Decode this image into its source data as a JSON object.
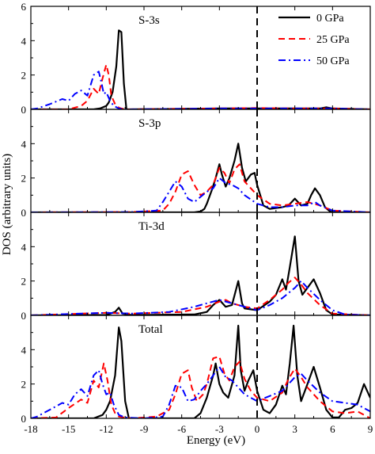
{
  "figure": {
    "ylabel": "DOS (arbitrary units)",
    "xlabel": "Energy (eV)",
    "xlim": [
      -18,
      9
    ],
    "x_ticks": [
      "-18",
      "-15",
      "-12",
      "-9",
      "-6",
      "-3",
      "0",
      "3",
      "6",
      "9"
    ],
    "fermi_line_at": 0,
    "legend": {
      "placement": "top-right of first panel",
      "entries": [
        {
          "name": "0 GPa",
          "color": "#000000",
          "style": "solid"
        },
        {
          "name": "25 GPa",
          "color": "#ff0000",
          "style": "dashed"
        },
        {
          "name": "50 GPa",
          "color": "#0000ff",
          "style": "dash-dot"
        }
      ]
    }
  },
  "chart_data": [
    {
      "type": "line",
      "panel_label": "S-3s",
      "ylim": [
        0,
        6
      ],
      "y_ticks": [
        "0",
        "2",
        "4",
        "6"
      ],
      "series": [
        {
          "name": "0 GPa",
          "x": [
            -18,
            -13,
            -12.5,
            -12,
            -11.8,
            -11.5,
            -11.2,
            -11.0,
            -10.8,
            -10.6,
            -10.4,
            -10,
            -3,
            0,
            3,
            5,
            5.5,
            6,
            9
          ],
          "y": [
            0,
            0,
            0.05,
            0.2,
            0.4,
            1.0,
            2.5,
            4.6,
            4.5,
            1.5,
            0,
            0,
            0.05,
            0.05,
            0.05,
            0.05,
            0.12,
            0.05,
            0
          ]
        },
        {
          "name": "25 GPa",
          "x": [
            -18,
            -15,
            -14,
            -13.5,
            -13,
            -12.6,
            -12.3,
            -12,
            -11.8,
            -11.6,
            -11.3,
            -11.0,
            -10.8,
            -10.5,
            -3,
            0,
            3,
            6,
            9
          ],
          "y": [
            0,
            0,
            0.2,
            0.5,
            1.2,
            0.9,
            1.8,
            2.6,
            2.0,
            0.8,
            0.3,
            0.1,
            0.05,
            0,
            0.05,
            0.08,
            0.05,
            0.05,
            0
          ]
        },
        {
          "name": "50 GPa",
          "x": [
            -18,
            -17.5,
            -16.5,
            -15.5,
            -15,
            -14.5,
            -14,
            -13.5,
            -13,
            -12.6,
            -12.4,
            -12.2,
            -12,
            -11.7,
            -11.4,
            -11.0,
            -10.5,
            -3,
            0,
            3,
            6,
            9
          ],
          "y": [
            0,
            0.05,
            0.3,
            0.6,
            0.5,
            0.9,
            1.1,
            0.8,
            2.0,
            2.2,
            1.6,
            0.9,
            1.0,
            0.5,
            0.2,
            0.05,
            0,
            0.05,
            0.05,
            0.05,
            0.05,
            0
          ]
        }
      ]
    },
    {
      "type": "line",
      "panel_label": "S-3p",
      "ylim": [
        0,
        6
      ],
      "y_ticks": [
        "0",
        "2",
        "4"
      ],
      "series": [
        {
          "name": "0 GPa",
          "x": [
            -18,
            -5,
            -4.5,
            -4.2,
            -4,
            -3.6,
            -3.3,
            -3,
            -2.8,
            -2.5,
            -2.2,
            -1.8,
            -1.5,
            -1.2,
            -0.9,
            -0.5,
            -0.2,
            0,
            0.5,
            1,
            2,
            2.5,
            3,
            3.5,
            4,
            4.3,
            4.6,
            5,
            5.4,
            5.8,
            6,
            9
          ],
          "y": [
            0,
            0,
            0.05,
            0.2,
            0.5,
            1.3,
            2.0,
            2.8,
            2.2,
            1.5,
            2.0,
            3.0,
            4.0,
            2.6,
            1.8,
            2.2,
            2.3,
            1.6,
            0.4,
            0.2,
            0.3,
            0.4,
            0.8,
            0.4,
            0.5,
            1.0,
            1.4,
            1.0,
            0.3,
            0.05,
            0,
            0
          ]
        },
        {
          "name": "25 GPa",
          "x": [
            -18,
            -10,
            -7.5,
            -7,
            -6.5,
            -6,
            -5.5,
            -5,
            -4.5,
            -4,
            -3.5,
            -3,
            -2.6,
            -2.2,
            -1.8,
            -1.4,
            -1,
            -0.5,
            0,
            1,
            2,
            3,
            4,
            5,
            6,
            9
          ],
          "y": [
            0,
            0.02,
            0.1,
            0.5,
            1.2,
            2.2,
            2.4,
            1.6,
            1.0,
            1.2,
            1.6,
            2.6,
            2.3,
            1.7,
            2.5,
            2.8,
            1.8,
            1.4,
            1.0,
            0.5,
            0.4,
            0.5,
            0.6,
            0.4,
            0.1,
            0
          ]
        },
        {
          "name": "50 GPa",
          "x": [
            -18,
            -10,
            -8,
            -7.5,
            -7,
            -6.5,
            -6,
            -5.5,
            -5,
            -4.5,
            -4,
            -3.5,
            -3,
            -2.5,
            -2,
            -1.5,
            -1,
            0,
            1,
            2,
            3,
            4,
            4.6,
            5,
            6,
            9
          ],
          "y": [
            0,
            0.02,
            0.1,
            0.6,
            1.2,
            1.8,
            1.5,
            0.8,
            0.6,
            0.9,
            1.2,
            1.4,
            2.0,
            1.7,
            1.6,
            1.4,
            1.0,
            0.5,
            0.3,
            0.3,
            0.4,
            0.4,
            0.6,
            0.4,
            0.1,
            0
          ]
        }
      ]
    },
    {
      "type": "line",
      "panel_label": "Ti-3d",
      "ylim": [
        0,
        6
      ],
      "y_ticks": [
        "0",
        "2",
        "4"
      ],
      "series": [
        {
          "name": "0 GPa",
          "x": [
            -18,
            -12,
            -11.3,
            -11,
            -10.7,
            -10,
            -5,
            -4,
            -3.5,
            -3,
            -2.5,
            -2,
            -1.5,
            -1.2,
            -1,
            0,
            1,
            1.5,
            2,
            2.3,
            2.6,
            3,
            3.3,
            3.6,
            4,
            4.5,
            5,
            5.5,
            6,
            9
          ],
          "y": [
            0,
            0.02,
            0.2,
            0.45,
            0.1,
            0.02,
            0.05,
            0.2,
            0.6,
            0.9,
            0.5,
            0.6,
            2.0,
            0.7,
            0.4,
            0.3,
            0.8,
            1.2,
            2.1,
            1.5,
            2.8,
            4.6,
            2.0,
            1.2,
            1.6,
            2.1,
            1.3,
            0.3,
            0.05,
            0
          ]
        },
        {
          "name": "25 GPa",
          "x": [
            -18,
            -14,
            -12,
            -10,
            -6,
            -4,
            -3,
            -2.5,
            -2,
            -1,
            0,
            1,
            2,
            2.5,
            3,
            3.5,
            4,
            5,
            6,
            9
          ],
          "y": [
            0,
            0.1,
            0.15,
            0.1,
            0.2,
            0.5,
            0.8,
            0.9,
            0.7,
            0.5,
            0.4,
            0.9,
            1.5,
            1.9,
            2.2,
            1.8,
            1.3,
            0.6,
            0.1,
            0
          ]
        },
        {
          "name": "50 GPa",
          "x": [
            -18,
            -14,
            -12,
            -10,
            -7,
            -5,
            -4,
            -3,
            -2,
            -1,
            0,
            1,
            2,
            3,
            3.5,
            4,
            5,
            6,
            7,
            9
          ],
          "y": [
            0,
            0.1,
            0.15,
            0.1,
            0.2,
            0.5,
            0.7,
            0.9,
            0.7,
            0.5,
            0.3,
            0.6,
            1.0,
            1.6,
            2.0,
            1.6,
            0.9,
            0.3,
            0.05,
            0
          ]
        }
      ]
    },
    {
      "type": "line",
      "panel_label": "Total",
      "ylim": [
        0,
        6
      ],
      "y_ticks": [
        "0",
        "2",
        "4"
      ],
      "series": [
        {
          "name": "0 GPa",
          "x": [
            -18,
            -13,
            -12.3,
            -12,
            -11.7,
            -11.3,
            -11.0,
            -10.8,
            -10.5,
            -10.2,
            -5,
            -4.5,
            -4,
            -3.5,
            -3.3,
            -3,
            -2.7,
            -2.3,
            -1.8,
            -1.5,
            -1.3,
            -1,
            -0.7,
            -0.3,
            0,
            0.5,
            1,
            1.5,
            2,
            2.3,
            2.6,
            2.9,
            3.2,
            3.5,
            4,
            4.5,
            5,
            5.5,
            6,
            6.5,
            7,
            7.5,
            8,
            8.5,
            9
          ],
          "y": [
            0,
            0,
            0.2,
            0.5,
            1.0,
            2.5,
            5.3,
            4.5,
            1.0,
            0,
            0,
            0.3,
            1.2,
            2.5,
            3.2,
            2.0,
            1.5,
            1.2,
            2.5,
            5.4,
            2.8,
            1.6,
            2.2,
            2.8,
            1.6,
            0.5,
            0.3,
            0.8,
            1.9,
            1.4,
            3.2,
            5.4,
            2.5,
            1.0,
            2.0,
            3.0,
            1.8,
            0.5,
            0.05,
            0.05,
            0.5,
            0.6,
            0.9,
            2.0,
            1.2
          ]
        },
        {
          "name": "25 GPa",
          "x": [
            -18,
            -16,
            -15,
            -14,
            -13.5,
            -13,
            -12.6,
            -12.2,
            -11.9,
            -11.6,
            -11.3,
            -11.0,
            -10.6,
            -10,
            -8,
            -7,
            -6.5,
            -6,
            -5.5,
            -5.2,
            -4.8,
            -4.3,
            -4,
            -3.5,
            -3,
            -2.6,
            -2.2,
            -1.8,
            -1.4,
            -1,
            -0.5,
            0,
            1,
            2,
            2.5,
            3,
            3.5,
            4,
            5,
            6,
            7,
            8,
            9
          ],
          "y": [
            0,
            0.05,
            0.6,
            1.1,
            0.9,
            2.2,
            1.8,
            3.2,
            2.2,
            0.8,
            0.3,
            0.1,
            0.05,
            0,
            0.1,
            0.5,
            1.4,
            2.6,
            2.8,
            1.8,
            1.0,
            1.4,
            2.0,
            3.5,
            3.6,
            2.6,
            2.2,
            3.0,
            3.3,
            2.3,
            1.6,
            1.2,
            1.0,
            1.5,
            2.3,
            2.9,
            2.4,
            1.8,
            1.0,
            0.4,
            0.3,
            0.4,
            0
          ]
        },
        {
          "name": "50 GPa",
          "x": [
            -18,
            -17.5,
            -16.5,
            -15.5,
            -15,
            -14.5,
            -14,
            -13.5,
            -13,
            -12.6,
            -12.3,
            -12,
            -11.7,
            -11.4,
            -11.0,
            -10.5,
            -9,
            -7.5,
            -7,
            -6.5,
            -6,
            -5.5,
            -5,
            -4.5,
            -4,
            -3.5,
            -3,
            -2.5,
            -2,
            -1.5,
            -1,
            0,
            1,
            2,
            3,
            3.5,
            4,
            5,
            6,
            7,
            8,
            9
          ],
          "y": [
            0,
            0.1,
            0.5,
            0.9,
            0.8,
            1.4,
            1.7,
            1.3,
            2.5,
            2.8,
            2.0,
            1.4,
            1.5,
            0.8,
            0.2,
            0.05,
            0,
            0.1,
            0.8,
            1.9,
            1.8,
            1.0,
            1.1,
            1.6,
            2.0,
            2.5,
            3.0,
            2.4,
            2.2,
            1.8,
            1.4,
            1.0,
            1.3,
            1.6,
            2.4,
            2.6,
            2.2,
            1.5,
            1.0,
            0.9,
            0.8,
            0.4
          ]
        }
      ]
    }
  ]
}
